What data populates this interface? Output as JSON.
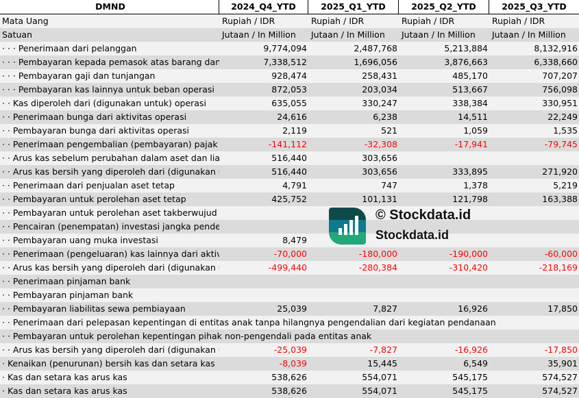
{
  "header": {
    "title": "DMND",
    "columns": [
      "2024_Q4_YTD",
      "2025_Q1_YTD",
      "2025_Q2_YTD",
      "2025_Q3_YTD"
    ]
  },
  "currency": {
    "label": "Mata Uang",
    "values": [
      "Rupiah / IDR",
      "Rupiah / IDR",
      "Rupiah / IDR",
      "Rupiah / IDR"
    ]
  },
  "unit": {
    "label": "Satuan",
    "values": [
      "Jutaan / In Million",
      "Jutaan / In Million",
      "Jutaan / In Million",
      "Jutaan / In Million"
    ]
  },
  "rows": [
    {
      "label": "· · · Penerimaan dari pelanggan",
      "values": [
        "9,774,094",
        "2,487,768",
        "5,213,884",
        "8,132,916"
      ]
    },
    {
      "label": "· · · Pembayaran kepada pemasok atas barang dan jasa",
      "values": [
        "7,338,512",
        "1,696,056",
        "3,876,663",
        "6,338,660"
      ]
    },
    {
      "label": "· · · Pembayaran gaji dan tunjangan",
      "values": [
        "928,474",
        "258,431",
        "485,170",
        "707,207"
      ]
    },
    {
      "label": "· · · Pembayaran kas lainnya untuk beban operasi",
      "values": [
        "872,053",
        "203,034",
        "513,667",
        "756,098"
      ]
    },
    {
      "label": "· · Kas diperoleh dari (digunakan untuk) operasi",
      "values": [
        "635,055",
        "330,247",
        "338,384",
        "330,951"
      ]
    },
    {
      "label": "· · Penerimaan bunga dari aktivitas operasi",
      "values": [
        "24,616",
        "6,238",
        "14,511",
        "22,249"
      ]
    },
    {
      "label": "· · Pembayaran bunga dari aktivitas operasi",
      "values": [
        "2,119",
        "521",
        "1,059",
        "1,535"
      ]
    },
    {
      "label": "· · Penerimaan pengembalian (pembayaran) pajak penghasilan",
      "values": [
        "-141,112",
        "-32,308",
        "-17,941",
        "-79,745"
      ]
    },
    {
      "label": "· · Arus kas sebelum perubahan dalam aset dan liabilitas",
      "values": [
        "516,440",
        "303,656",
        "",
        ""
      ]
    },
    {
      "label": "· · Arus kas bersih yang diperoleh dari (digunakan untuk) aktivitas operasi",
      "values": [
        "516,440",
        "303,656",
        "333,895",
        "271,920"
      ]
    },
    {
      "label": "· · Penerimaan dari penjualan aset tetap",
      "values": [
        "4,791",
        "747",
        "1,378",
        "5,219"
      ]
    },
    {
      "label": "· · Pembayaran untuk perolehan aset tetap",
      "values": [
        "425,752",
        "101,131",
        "121,798",
        "163,388"
      ]
    },
    {
      "label": "· · Pembayaran untuk perolehan aset takberwujud",
      "values": [
        "",
        "",
        "",
        ""
      ]
    },
    {
      "label": "· · Pencairan (penempatan) investasi jangka pendek",
      "values": [
        "",
        "",
        "",
        ""
      ]
    },
    {
      "label": "· · Pembayaran uang muka investasi",
      "values": [
        "8,479",
        "",
        "",
        ""
      ]
    },
    {
      "label": "· · Penerimaan (pengeluaran) kas lainnya dari aktivitas investasi",
      "values": [
        "-70,000",
        "-180,000",
        "-190,000",
        "-60,000"
      ]
    },
    {
      "label": "· · Arus kas bersih yang diperoleh dari (digunakan untuk) aktivitas investasi",
      "values": [
        "-499,440",
        "-280,384",
        "-310,420",
        "-218,169"
      ]
    },
    {
      "label": "· · Penerimaan pinjaman bank",
      "values": [
        "",
        "",
        "",
        ""
      ]
    },
    {
      "label": "· · Pembayaran pinjaman bank",
      "values": [
        "",
        "",
        "",
        ""
      ]
    },
    {
      "label": "· · Pembayaran liabilitas sewa pembiayaan",
      "values": [
        "25,039",
        "7,827",
        "16,926",
        "17,850"
      ]
    },
    {
      "label": "· · Penerimaan dari pelepasan kepentingan di entitas anak tanpa hilangnya pengendalian dari kegiatan pendanaan",
      "values": [
        "",
        "",
        "",
        ""
      ],
      "overflow": true
    },
    {
      "label": "· · Pembayaran untuk perolehan kepentingan pihak non-pengendali pada entitas anak",
      "values": [
        "",
        "",
        "",
        ""
      ],
      "overflow": true
    },
    {
      "label": "· · Arus kas bersih yang diperoleh dari (digunakan untuk) aktivitas pendanaan",
      "values": [
        "-25,039",
        "-7,827",
        "-16,926",
        "-17,850"
      ]
    },
    {
      "label": "· Kenaikan (penurunan) bersih kas dan setara kas",
      "values": [
        "-8,039",
        "15,445",
        "6,549",
        "35,901"
      ]
    },
    {
      "label": "· Kas dan setara kas arus kas",
      "values": [
        "538,626",
        "554,071",
        "545,175",
        "574,527"
      ]
    },
    {
      "label": "· Kas dan setara kas arus kas",
      "values": [
        "538,626",
        "554,071",
        "545,175",
        "574,527"
      ]
    }
  ],
  "watermark": {
    "text": "© Stockdata.id",
    "logo_text": "Stockdata.id"
  }
}
